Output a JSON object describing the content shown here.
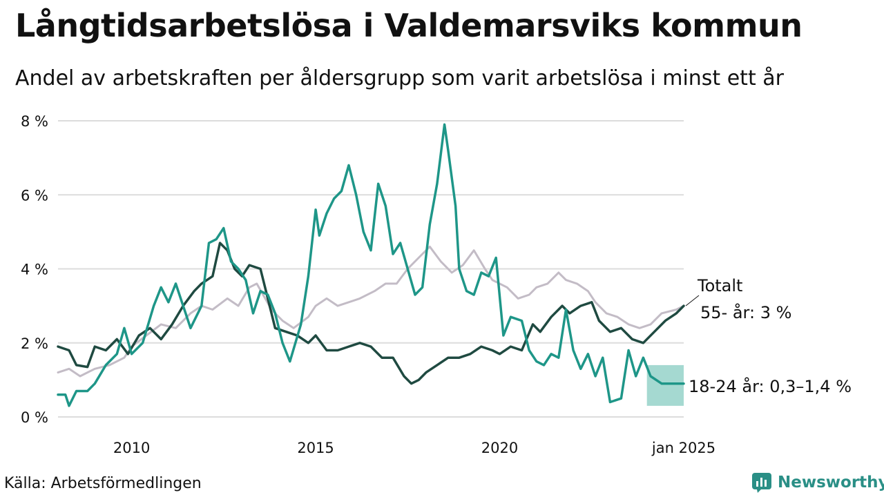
{
  "header": {
    "title": "Långtidsarbetslösa i Valdemarsviks kommun",
    "subtitle": "Andel av arbetskraften per åldersgrupp som varit arbetslösa i minst ett år"
  },
  "footer": {
    "source": "Källa: Arbetsförmedlingen",
    "brand": "Newsworthy"
  },
  "colors": {
    "youth": "#1e9688",
    "senior": "#1f4a41",
    "total": "#c3bcc6",
    "band": "#8fd0c6",
    "grid": "#dcdcdc",
    "brand": "#2a8f86"
  },
  "chart_data": {
    "type": "line",
    "title": "Långtidsarbetslösa i Valdemarsviks kommun",
    "subtitle": "Andel av arbetskraften per åldersgrupp som varit arbetslösa i minst ett år",
    "xlabel": "",
    "ylabel": "",
    "xlim": [
      2008.0,
      2025.0
    ],
    "ylim": [
      0,
      8
    ],
    "grid": true,
    "x_ticks": [
      {
        "value": 2010,
        "label": "2010"
      },
      {
        "value": 2015,
        "label": "2015"
      },
      {
        "value": 2020,
        "label": "2020"
      },
      {
        "value": 2025,
        "label": "jan 2025"
      }
    ],
    "y_ticks": [
      {
        "value": 0,
        "label": "0 %"
      },
      {
        "value": 2,
        "label": "2 %"
      },
      {
        "value": 4,
        "label": "4 %"
      },
      {
        "value": 6,
        "label": "6 %"
      },
      {
        "value": 8,
        "label": "8 %"
      }
    ],
    "series": [
      {
        "name": "Totalt",
        "key": "total",
        "points": [
          [
            2008.0,
            1.2
          ],
          [
            2008.3,
            1.3
          ],
          [
            2008.6,
            1.1
          ],
          [
            2009.0,
            1.3
          ],
          [
            2009.4,
            1.4
          ],
          [
            2009.8,
            1.6
          ],
          [
            2010.0,
            1.9
          ],
          [
            2010.4,
            2.2
          ],
          [
            2010.8,
            2.5
          ],
          [
            2011.2,
            2.4
          ],
          [
            2011.6,
            2.8
          ],
          [
            2011.9,
            3.0
          ],
          [
            2012.2,
            2.9
          ],
          [
            2012.6,
            3.2
          ],
          [
            2012.9,
            3.0
          ],
          [
            2013.2,
            3.5
          ],
          [
            2013.4,
            3.6
          ],
          [
            2013.8,
            2.9
          ],
          [
            2014.1,
            2.6
          ],
          [
            2014.4,
            2.4
          ],
          [
            2014.8,
            2.7
          ],
          [
            2015.0,
            3.0
          ],
          [
            2015.3,
            3.2
          ],
          [
            2015.6,
            3.0
          ],
          [
            2015.9,
            3.1
          ],
          [
            2016.2,
            3.2
          ],
          [
            2016.6,
            3.4
          ],
          [
            2016.9,
            3.6
          ],
          [
            2017.2,
            3.6
          ],
          [
            2017.5,
            4.0
          ],
          [
            2017.9,
            4.4
          ],
          [
            2018.1,
            4.6
          ],
          [
            2018.4,
            4.2
          ],
          [
            2018.7,
            3.9
          ],
          [
            2019.0,
            4.1
          ],
          [
            2019.3,
            4.5
          ],
          [
            2019.6,
            4.0
          ],
          [
            2019.8,
            3.7
          ],
          [
            2020.2,
            3.5
          ],
          [
            2020.5,
            3.2
          ],
          [
            2020.8,
            3.3
          ],
          [
            2021.0,
            3.5
          ],
          [
            2021.3,
            3.6
          ],
          [
            2021.6,
            3.9
          ],
          [
            2021.8,
            3.7
          ],
          [
            2022.1,
            3.6
          ],
          [
            2022.4,
            3.4
          ],
          [
            2022.6,
            3.1
          ],
          [
            2022.9,
            2.8
          ],
          [
            2023.2,
            2.7
          ],
          [
            2023.5,
            2.5
          ],
          [
            2023.8,
            2.4
          ],
          [
            2024.1,
            2.5
          ],
          [
            2024.4,
            2.8
          ],
          [
            2024.8,
            2.9
          ],
          [
            2025.0,
            3.0
          ]
        ]
      },
      {
        "name": "55- år",
        "key": "senior",
        "end_label": "55- år:  3 %",
        "points": [
          [
            2008.0,
            1.9
          ],
          [
            2008.3,
            1.8
          ],
          [
            2008.5,
            1.4
          ],
          [
            2008.8,
            1.35
          ],
          [
            2009.0,
            1.9
          ],
          [
            2009.3,
            1.8
          ],
          [
            2009.6,
            2.1
          ],
          [
            2009.9,
            1.7
          ],
          [
            2010.2,
            2.2
          ],
          [
            2010.5,
            2.4
          ],
          [
            2010.8,
            2.1
          ],
          [
            2011.1,
            2.5
          ],
          [
            2011.4,
            3.0
          ],
          [
            2011.7,
            3.4
          ],
          [
            2011.9,
            3.6
          ],
          [
            2012.2,
            3.8
          ],
          [
            2012.4,
            4.7
          ],
          [
            2012.6,
            4.5
          ],
          [
            2012.8,
            4.0
          ],
          [
            2013.0,
            3.8
          ],
          [
            2013.2,
            4.1
          ],
          [
            2013.5,
            4.0
          ],
          [
            2013.7,
            3.2
          ],
          [
            2013.9,
            2.4
          ],
          [
            2014.2,
            2.3
          ],
          [
            2014.5,
            2.2
          ],
          [
            2014.8,
            2.0
          ],
          [
            2015.0,
            2.2
          ],
          [
            2015.3,
            1.8
          ],
          [
            2015.6,
            1.8
          ],
          [
            2015.9,
            1.9
          ],
          [
            2016.2,
            2.0
          ],
          [
            2016.5,
            1.9
          ],
          [
            2016.8,
            1.6
          ],
          [
            2017.1,
            1.6
          ],
          [
            2017.4,
            1.1
          ],
          [
            2017.6,
            0.9
          ],
          [
            2017.8,
            1.0
          ],
          [
            2018.0,
            1.2
          ],
          [
            2018.3,
            1.4
          ],
          [
            2018.6,
            1.6
          ],
          [
            2018.9,
            1.6
          ],
          [
            2019.2,
            1.7
          ],
          [
            2019.5,
            1.9
          ],
          [
            2019.8,
            1.8
          ],
          [
            2020.0,
            1.7
          ],
          [
            2020.3,
            1.9
          ],
          [
            2020.6,
            1.8
          ],
          [
            2020.9,
            2.5
          ],
          [
            2021.1,
            2.3
          ],
          [
            2021.4,
            2.7
          ],
          [
            2021.7,
            3.0
          ],
          [
            2021.9,
            2.8
          ],
          [
            2022.2,
            3.0
          ],
          [
            2022.5,
            3.1
          ],
          [
            2022.7,
            2.6
          ],
          [
            2023.0,
            2.3
          ],
          [
            2023.3,
            2.4
          ],
          [
            2023.6,
            2.1
          ],
          [
            2023.9,
            2.0
          ],
          [
            2024.2,
            2.3
          ],
          [
            2024.5,
            2.6
          ],
          [
            2024.8,
            2.8
          ],
          [
            2025.0,
            3.0
          ]
        ]
      },
      {
        "name": "18-24 år",
        "key": "youth",
        "end_label": "18-24 år: 0,3–1,4 %",
        "band_range": [
          0.3,
          1.4
        ],
        "band_start": 2024.0,
        "points": [
          [
            2008.0,
            0.6
          ],
          [
            2008.2,
            0.6
          ],
          [
            2008.3,
            0.3
          ],
          [
            2008.5,
            0.7
          ],
          [
            2008.8,
            0.7
          ],
          [
            2009.0,
            0.9
          ],
          [
            2009.3,
            1.4
          ],
          [
            2009.6,
            1.7
          ],
          [
            2009.8,
            2.4
          ],
          [
            2010.0,
            1.7
          ],
          [
            2010.3,
            2.0
          ],
          [
            2010.6,
            3.0
          ],
          [
            2010.8,
            3.5
          ],
          [
            2011.0,
            3.1
          ],
          [
            2011.2,
            3.6
          ],
          [
            2011.4,
            3.0
          ],
          [
            2011.6,
            2.4
          ],
          [
            2011.9,
            3.0
          ],
          [
            2012.1,
            4.7
          ],
          [
            2012.3,
            4.8
          ],
          [
            2012.5,
            5.1
          ],
          [
            2012.7,
            4.2
          ],
          [
            2012.9,
            4.0
          ],
          [
            2013.1,
            3.7
          ],
          [
            2013.3,
            2.8
          ],
          [
            2013.5,
            3.4
          ],
          [
            2013.7,
            3.3
          ],
          [
            2013.9,
            2.8
          ],
          [
            2014.1,
            2.0
          ],
          [
            2014.3,
            1.5
          ],
          [
            2014.6,
            2.5
          ],
          [
            2014.8,
            3.8
          ],
          [
            2015.0,
            5.6
          ],
          [
            2015.1,
            4.9
          ],
          [
            2015.3,
            5.5
          ],
          [
            2015.5,
            5.9
          ],
          [
            2015.7,
            6.1
          ],
          [
            2015.9,
            6.8
          ],
          [
            2016.1,
            6.0
          ],
          [
            2016.3,
            5.0
          ],
          [
            2016.5,
            4.5
          ],
          [
            2016.7,
            6.3
          ],
          [
            2016.9,
            5.7
          ],
          [
            2017.1,
            4.4
          ],
          [
            2017.3,
            4.7
          ],
          [
            2017.5,
            4.0
          ],
          [
            2017.7,
            3.3
          ],
          [
            2017.9,
            3.5
          ],
          [
            2018.1,
            5.2
          ],
          [
            2018.3,
            6.3
          ],
          [
            2018.5,
            7.9
          ],
          [
            2018.6,
            7.2
          ],
          [
            2018.8,
            5.7
          ],
          [
            2018.9,
            4.0
          ],
          [
            2019.1,
            3.4
          ],
          [
            2019.3,
            3.3
          ],
          [
            2019.5,
            3.9
          ],
          [
            2019.7,
            3.8
          ],
          [
            2019.9,
            4.3
          ],
          [
            2020.1,
            2.2
          ],
          [
            2020.3,
            2.7
          ],
          [
            2020.6,
            2.6
          ],
          [
            2020.8,
            1.8
          ],
          [
            2021.0,
            1.5
          ],
          [
            2021.2,
            1.4
          ],
          [
            2021.4,
            1.7
          ],
          [
            2021.6,
            1.6
          ],
          [
            2021.8,
            2.9
          ],
          [
            2022.0,
            1.8
          ],
          [
            2022.2,
            1.3
          ],
          [
            2022.4,
            1.7
          ],
          [
            2022.6,
            1.1
          ],
          [
            2022.8,
            1.6
          ],
          [
            2023.0,
            0.4
          ],
          [
            2023.3,
            0.5
          ],
          [
            2023.5,
            1.8
          ],
          [
            2023.7,
            1.1
          ],
          [
            2023.9,
            1.6
          ],
          [
            2024.1,
            1.1
          ],
          [
            2024.4,
            0.9
          ],
          [
            2024.7,
            0.9
          ],
          [
            2025.0,
            0.9
          ]
        ]
      }
    ],
    "annotations": [
      {
        "text": "Totalt",
        "series": "total"
      }
    ]
  }
}
